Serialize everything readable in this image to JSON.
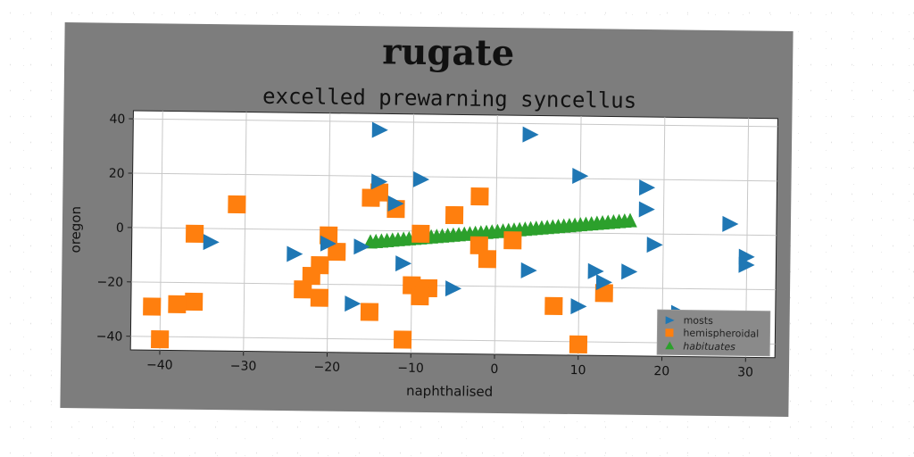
{
  "chart_data": {
    "type": "scatter",
    "title": "rugate",
    "subtitle": "excelled prewarning syncellus",
    "xlabel": "naphthalised",
    "ylabel": "oregon",
    "xlim": [
      -43.5,
      33.5
    ],
    "ylim": [
      -45,
      43
    ],
    "xticks": [
      -40,
      -30,
      -20,
      -10,
      0,
      10,
      20,
      30
    ],
    "xtick_labels": [
      "−40",
      "−30",
      "−20",
      "−10",
      "0",
      "10",
      "20",
      "30"
    ],
    "yticks": [
      -40,
      -20,
      0,
      20,
      40
    ],
    "ytick_labels": [
      "−40",
      "−20",
      "0",
      "20",
      "40"
    ],
    "grid": true,
    "legend_position": "bottom-right",
    "series": [
      {
        "name": "mosts",
        "marker": "triangle-right",
        "color": "#1f77b4",
        "points": [
          [
            -14,
            37
          ],
          [
            4,
            36
          ],
          [
            -14,
            18
          ],
          [
            -12,
            10
          ],
          [
            -9,
            19
          ],
          [
            10,
            21
          ],
          [
            18,
            17
          ],
          [
            18,
            9
          ],
          [
            28,
            4
          ],
          [
            30,
            -8
          ],
          [
            30,
            -11
          ],
          [
            19,
            -4
          ],
          [
            -34,
            -5
          ],
          [
            -24,
            -9
          ],
          [
            -20,
            -5
          ],
          [
            -11,
            -12
          ],
          [
            -16,
            -6
          ],
          [
            -5,
            -21
          ],
          [
            4,
            -14
          ],
          [
            12,
            -14
          ],
          [
            16,
            -14
          ],
          [
            13,
            -18
          ],
          [
            -17,
            -27
          ],
          [
            10,
            -27
          ],
          [
            22,
            -29
          ]
        ]
      },
      {
        "name": "hemispheroidal",
        "marker": "square",
        "color": "#ff7f0e",
        "points": [
          [
            -31,
            9
          ],
          [
            -36,
            -2
          ],
          [
            -15,
            12
          ],
          [
            -14,
            14
          ],
          [
            -12,
            8
          ],
          [
            -2,
            13
          ],
          [
            -5,
            6
          ],
          [
            -9,
            -1
          ],
          [
            -20,
            -2
          ],
          [
            -19,
            -8
          ],
          [
            -21,
            -13
          ],
          [
            -22,
            -17
          ],
          [
            -23,
            -22
          ],
          [
            -21,
            -25
          ],
          [
            -2,
            -5
          ],
          [
            -1,
            -10
          ],
          [
            2,
            -3
          ],
          [
            -10,
            -20
          ],
          [
            -8,
            -21
          ],
          [
            -9,
            -24
          ],
          [
            -15,
            -30
          ],
          [
            -36,
            -27
          ],
          [
            -38,
            -28
          ],
          [
            -41,
            -29
          ],
          [
            -40,
            -41
          ],
          [
            -11,
            -40
          ],
          [
            7,
            -27
          ],
          [
            13,
            -22
          ],
          [
            10,
            -41
          ]
        ]
      },
      {
        "name": "habituates",
        "marker": "triangle-up",
        "color": "#2ca02c",
        "line_from": [
          -15,
          -4
        ],
        "line_to": [
          16,
          5
        ],
        "count": 48
      }
    ]
  },
  "legend": {
    "items": [
      "mosts",
      "hemispheroidal",
      "habituates"
    ]
  }
}
